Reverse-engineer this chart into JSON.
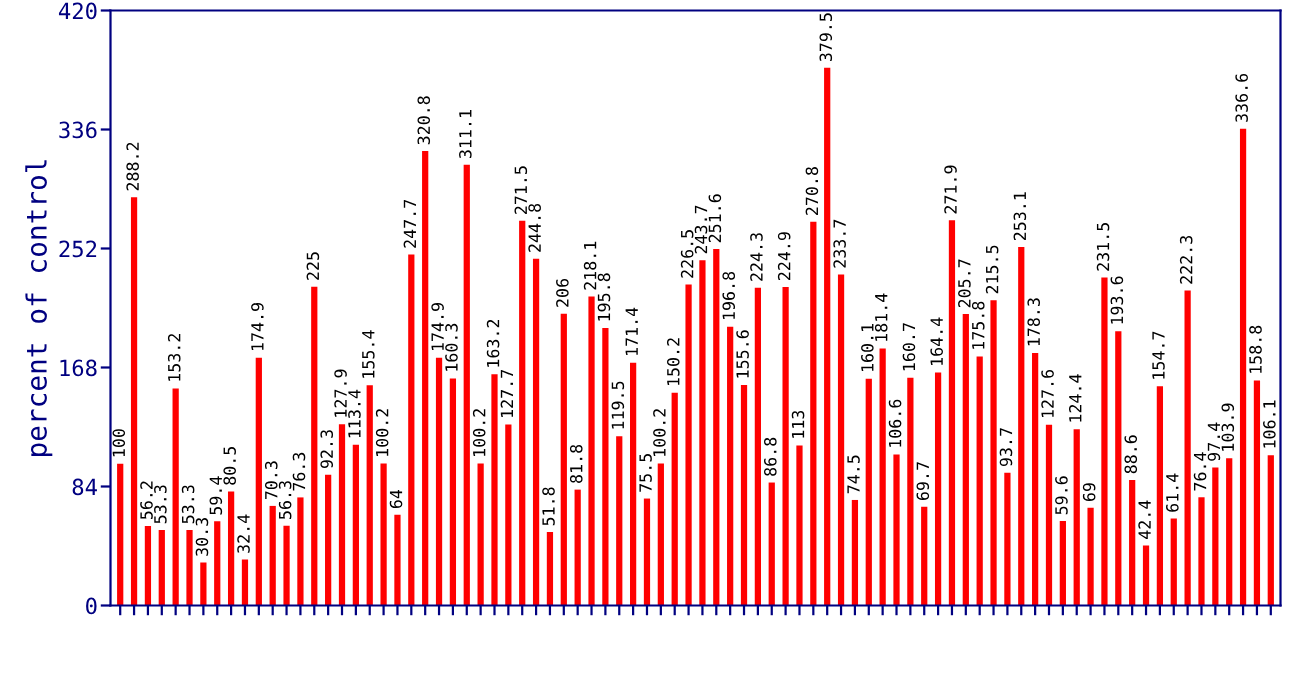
{
  "chart_data": {
    "type": "bar",
    "ylabel": "percent of control",
    "categories": [
      null,
      null,
      null,
      null,
      null,
      null,
      null,
      null,
      null,
      null,
      null,
      null,
      null,
      null,
      null,
      null,
      null,
      null,
      null,
      null,
      null,
      null,
      null,
      null,
      null,
      null,
      null,
      null,
      null,
      null,
      null,
      null,
      null,
      null,
      null,
      null,
      null,
      null,
      null,
      null,
      null,
      null,
      null,
      null,
      null,
      null,
      null,
      null,
      null,
      null,
      null,
      null,
      null,
      null,
      null,
      null,
      null,
      null,
      null,
      null,
      null,
      null,
      null,
      null,
      null,
      null,
      null,
      null,
      null,
      null,
      null,
      null,
      null,
      null,
      null,
      null,
      null,
      null,
      null,
      null,
      null,
      null,
      null,
      null
    ],
    "values": [
      100,
      288.2,
      56.2,
      53.3,
      153.2,
      53.3,
      30.3,
      59.4,
      80.5,
      32.4,
      174.9,
      70.3,
      56.3,
      76.3,
      225,
      92.3,
      127.9,
      113.4,
      155.4,
      100.2,
      64,
      247.7,
      320.8,
      174.9,
      160.3,
      311.1,
      100.2,
      163.2,
      127.7,
      271.5,
      244.8,
      51.8,
      206,
      81.8,
      218.1,
      195.8,
      119.5,
      171.4,
      75.5,
      100.2,
      150.2,
      226.5,
      243.7,
      251.6,
      196.8,
      155.6,
      224.3,
      86.8,
      224.9,
      113,
      270.8,
      379.5,
      233.7,
      74.5,
      160.1,
      181.4,
      106.6,
      160.7,
      69.7,
      164.4,
      271.9,
      205.7,
      175.8,
      215.5,
      93.7,
      253.1,
      178.3,
      127.6,
      59.6,
      124.4,
      69,
      231.5,
      193.6,
      88.6,
      42.4,
      154.7,
      61.4,
      222.3,
      76.4,
      97.4,
      103.9,
      336.6,
      158.8,
      106.1
    ],
    "color": "#ff0000",
    "ylim": [
      0,
      420
    ],
    "yticks": [
      0,
      84,
      168,
      252,
      336,
      420
    ],
    "data_labels": true,
    "grid": false,
    "legend": false
  }
}
